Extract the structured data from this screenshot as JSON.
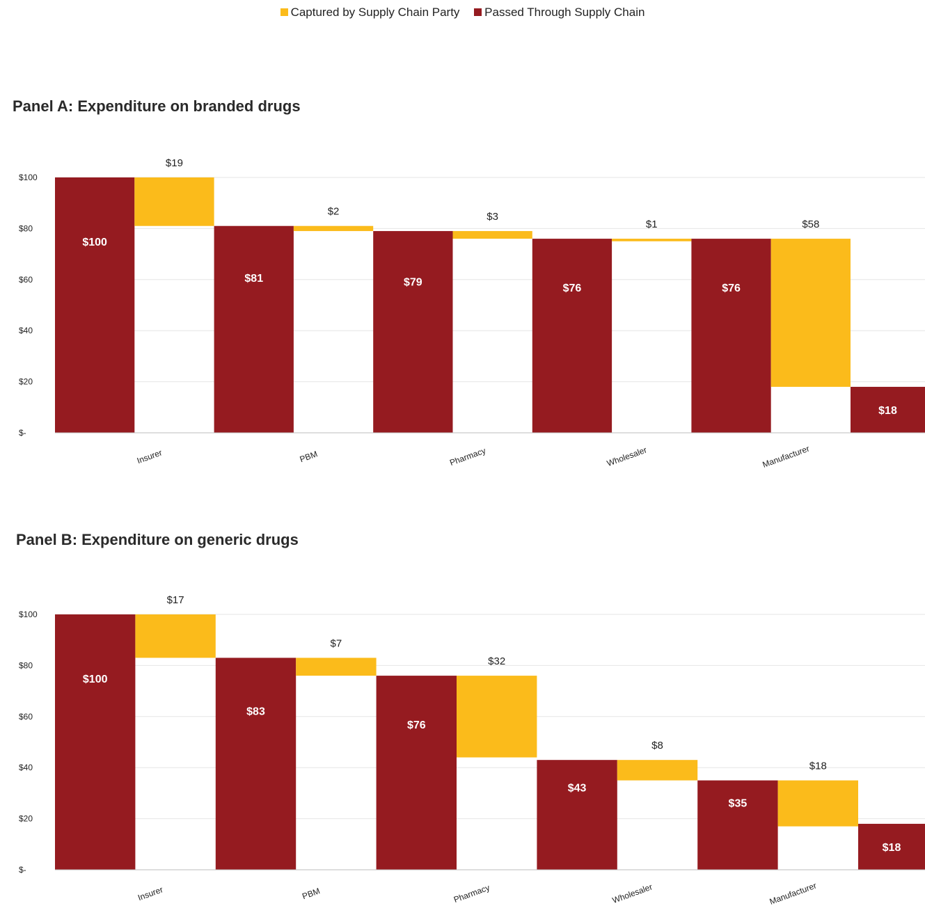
{
  "legend": {
    "captured_label": "Captured by Supply Chain Party",
    "passed_label": "Passed Through Supply Chain",
    "captured_color": "#FBBB1B",
    "passed_color": "#951B20"
  },
  "panels": {
    "a": {
      "title": "Panel A:  Expenditure on branded drugs"
    },
    "b": {
      "title": "Panel B:  Expenditure on generic drugs"
    }
  },
  "chart_data": [
    {
      "type": "bar",
      "subtype": "waterfall",
      "title": "Panel A:  Expenditure on branded drugs",
      "categories": [
        "Insurer",
        "PBM",
        "Pharmacy",
        "Wholesaler",
        "Manufacturer"
      ],
      "ylim": [
        0,
        100
      ],
      "yticks": [
        0,
        20,
        40,
        60,
        80,
        100
      ],
      "ytick_labels": [
        "$-",
        "$20",
        "$40",
        "$60",
        "$80",
        "$100"
      ],
      "grid": true,
      "legend_position": "top-center",
      "series": [
        {
          "name": "Passed Through Supply Chain",
          "values": [
            100,
            81,
            79,
            76,
            76
          ],
          "labels": [
            "$100",
            "$81",
            "$79",
            "$76",
            "$76"
          ]
        },
        {
          "name": "Captured by Supply Chain Party",
          "values": [
            19,
            2,
            3,
            1,
            58
          ],
          "labels": [
            "$19",
            "$2",
            "$3",
            "$1",
            "$58"
          ]
        }
      ],
      "final": {
        "value": 18,
        "label": "$18"
      }
    },
    {
      "type": "bar",
      "subtype": "waterfall",
      "title": "Panel B:  Expenditure on generic drugs",
      "categories": [
        "Insurer",
        "PBM",
        "Pharmacy",
        "Wholesaler",
        "Manufacturer"
      ],
      "ylim": [
        0,
        100
      ],
      "yticks": [
        0,
        20,
        40,
        60,
        80,
        100
      ],
      "ytick_labels": [
        "$-",
        "$20",
        "$40",
        "$60",
        "$80",
        "$100"
      ],
      "grid": true,
      "legend_position": "top-center",
      "series": [
        {
          "name": "Passed Through Supply Chain",
          "values": [
            100,
            83,
            76,
            43,
            35
          ],
          "labels": [
            "$100",
            "$83",
            "$76",
            "$43",
            "$35"
          ]
        },
        {
          "name": "Captured by Supply Chain Party",
          "values": [
            17,
            7,
            32,
            8,
            18
          ],
          "labels": [
            "$17",
            "$7",
            "$32",
            "$8",
            "$18"
          ]
        }
      ],
      "final": {
        "value": 18,
        "label": "$18"
      }
    }
  ]
}
